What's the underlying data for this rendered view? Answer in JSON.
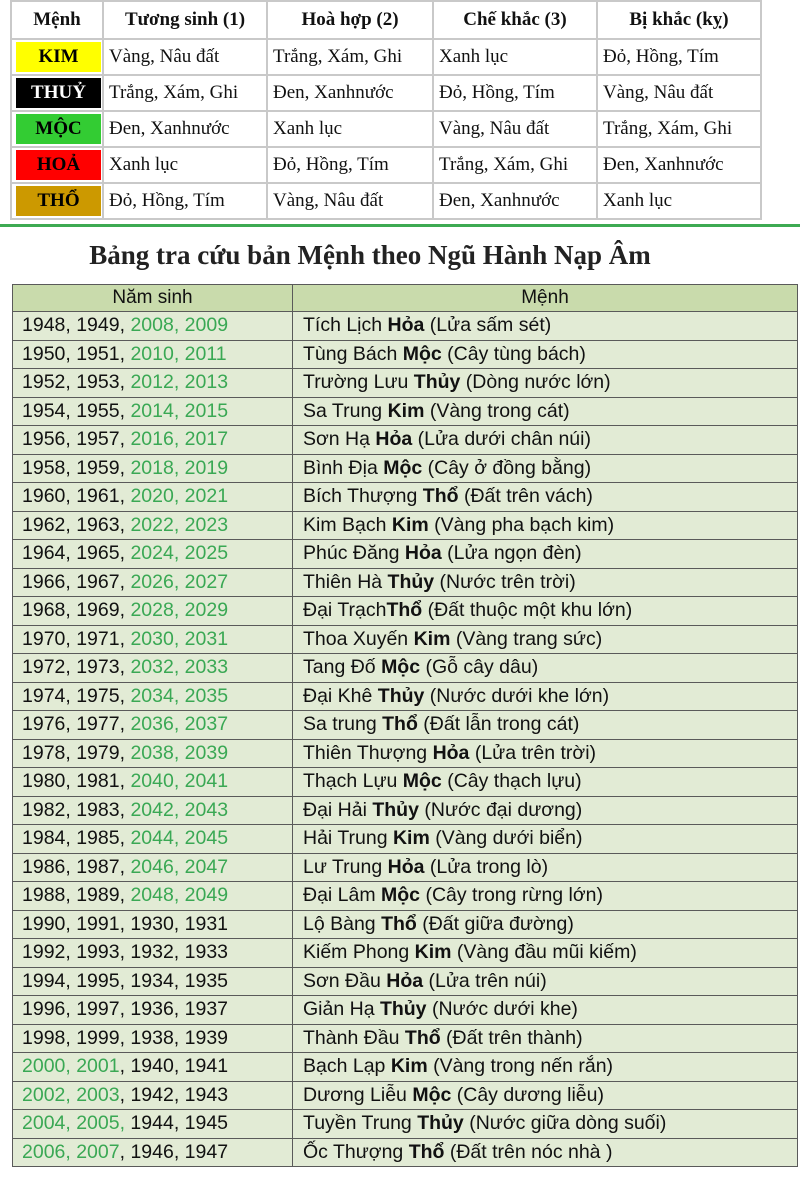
{
  "top_table": {
    "headers": [
      "Mệnh",
      "Tương sinh (1)",
      "Hoà hợp (2)",
      "Chế khắc (3)",
      "Bị khắc (kỵ)"
    ],
    "rows": [
      {
        "menh": "KIM",
        "bg": "#ffff00",
        "fg": "#000000",
        "cells": [
          "Vàng, Nâu đất",
          "Trắng, Xám, Ghi",
          "Xanh lục",
          "Đỏ, Hồng, Tím"
        ]
      },
      {
        "menh": "THUỶ",
        "bg": "#000000",
        "fg": "#ffffff",
        "cells": [
          "Trắng, Xám, Ghi",
          "Đen, Xanhnước",
          "Đỏ, Hồng, Tím",
          "Vàng, Nâu đất"
        ]
      },
      {
        "menh": "MỘC",
        "bg": "#33cc33",
        "fg": "#000000",
        "cells": [
          "Đen, Xanhnước",
          "Xanh lục",
          "Vàng, Nâu đất",
          "Trắng, Xám, Ghi"
        ]
      },
      {
        "menh": "HOẢ",
        "bg": "#ff0000",
        "fg": "#000000",
        "cells": [
          "Xanh lục",
          "Đỏ, Hồng, Tím",
          "Trắng, Xám, Ghi",
          "Đen, Xanhnước"
        ]
      },
      {
        "menh": "THỔ",
        "bg": "#cc9900",
        "fg": "#000000",
        "cells": [
          "Đỏ, Hồng, Tím",
          "Vàng, Nâu đất",
          "Đen, Xanhnước",
          "Xanh lục"
        ]
      }
    ]
  },
  "section_title": "Bảng tra cứu bản Mệnh theo Ngũ Hành Nạp Âm",
  "lookup_table": {
    "headers": [
      "Năm sinh",
      "Mệnh"
    ],
    "rows": [
      {
        "years": [
          [
            "1948, 1949, ",
            false
          ],
          [
            "2008, 2009",
            true
          ]
        ],
        "menh": [
          "Tích Lịch ",
          "Hỏa",
          " (Lửa sấm sét)"
        ]
      },
      {
        "years": [
          [
            "1950, 1951, ",
            false
          ],
          [
            "2010, 2011",
            true
          ]
        ],
        "menh": [
          "Tùng Bách ",
          "Mộc",
          " (Cây tùng bách)"
        ]
      },
      {
        "years": [
          [
            "1952, 1953, ",
            false
          ],
          [
            "2012, 2013",
            true
          ]
        ],
        "menh": [
          "Trường Lưu ",
          "Thủy",
          " (Dòng nước lớn)"
        ]
      },
      {
        "years": [
          [
            "1954, 1955, ",
            false
          ],
          [
            "2014, 2015",
            true
          ]
        ],
        "menh": [
          "Sa Trung ",
          "Kim",
          " (Vàng trong cát)"
        ]
      },
      {
        "years": [
          [
            "1956, 1957, ",
            false
          ],
          [
            "2016, 2017",
            true
          ]
        ],
        "menh": [
          " Sơn Hạ ",
          "Hỏa",
          " (Lửa dưới chân núi)"
        ]
      },
      {
        "years": [
          [
            "1958, 1959, ",
            false
          ],
          [
            "2018, 2019",
            true
          ]
        ],
        "menh": [
          "Bình Địa ",
          "Mộc",
          " (Cây ở đồng bằng)"
        ]
      },
      {
        "years": [
          [
            "1960, 1961, ",
            false
          ],
          [
            "2020, 2021",
            true
          ]
        ],
        "menh": [
          "Bích Thượng ",
          "Thổ",
          " (Đất trên vách)"
        ]
      },
      {
        "years": [
          [
            "1962, 1963, ",
            false
          ],
          [
            "2022, 2023",
            true
          ]
        ],
        "menh": [
          "Kim Bạch ",
          "Kim",
          " (Vàng pha bạch kim)"
        ]
      },
      {
        "years": [
          [
            "1964, 1965, ",
            false
          ],
          [
            "2024, 2025",
            true
          ]
        ],
        "menh": [
          "Phúc Đăng ",
          "Hỏa",
          " (Lửa ngọn đèn)"
        ]
      },
      {
        "years": [
          [
            "1966, 1967, ",
            false
          ],
          [
            "2026, 2027",
            true
          ]
        ],
        "menh": [
          "Thiên Hà ",
          "Thủy",
          " (Nước trên trời)"
        ]
      },
      {
        "years": [
          [
            "1968, 1969, ",
            false
          ],
          [
            "2028, 2029",
            true
          ]
        ],
        "menh": [
          "Đại Trạch",
          "Thổ",
          " (Đất thuộc một khu lớn)"
        ]
      },
      {
        "years": [
          [
            "1970, 1971, ",
            false
          ],
          [
            "2030, 2031",
            true
          ]
        ],
        "menh": [
          "Thoa Xuyến ",
          "Kim",
          " (Vàng trang sức)"
        ]
      },
      {
        "years": [
          [
            "1972, 1973, ",
            false
          ],
          [
            "2032, 2033",
            true
          ]
        ],
        "menh": [
          "Tang Đố ",
          "Mộc",
          " (Gỗ cây dâu)"
        ]
      },
      {
        "years": [
          [
            "1974, 1975, ",
            false
          ],
          [
            "2034, 2035",
            true
          ]
        ],
        "menh": [
          "Đại Khê ",
          "Thủy",
          " (Nước dưới khe lớn)"
        ]
      },
      {
        "years": [
          [
            "1976, 1977, ",
            false
          ],
          [
            "2036, 2037",
            true
          ]
        ],
        "menh": [
          "Sa trung ",
          "Thổ",
          " (Đất lẫn trong cát)"
        ]
      },
      {
        "years": [
          [
            "1978, 1979, ",
            false
          ],
          [
            "2038, 2039",
            true
          ]
        ],
        "menh": [
          "Thiên Thượng ",
          "Hỏa",
          " (Lửa trên trời)"
        ]
      },
      {
        "years": [
          [
            "1980, 1981, ",
            false
          ],
          [
            "2040, 2041",
            true
          ]
        ],
        "menh": [
          " Thạch Lựu ",
          "Mộc",
          " (Cây thạch lựu)"
        ]
      },
      {
        "years": [
          [
            "1982, 1983, ",
            false
          ],
          [
            "2042, 2043",
            true
          ]
        ],
        "menh": [
          "Đại Hải ",
          "Thủy",
          " (Nước đại dương)"
        ]
      },
      {
        "years": [
          [
            "1984, 1985, ",
            false
          ],
          [
            "2044, 2045",
            true
          ]
        ],
        "menh": [
          "Hải Trung ",
          "Kim",
          " (Vàng dưới biển)"
        ]
      },
      {
        "years": [
          [
            "1986, 1987, ",
            false
          ],
          [
            "2046, 2047",
            true
          ]
        ],
        "menh": [
          "Lư Trung ",
          "Hỏa",
          " (Lửa trong lò)"
        ]
      },
      {
        "years": [
          [
            "1988, 1989, ",
            false
          ],
          [
            "2048, 2049",
            true
          ]
        ],
        "menh": [
          "Đại Lâm ",
          "Mộc",
          " (Cây trong rừng lớn)"
        ]
      },
      {
        "years": [
          [
            "1990, 1991, 1930, 1931",
            false
          ]
        ],
        "menh": [
          "Lộ Bàng ",
          "Thổ",
          " (Đất giữa đường)"
        ]
      },
      {
        "years": [
          [
            "1992, 1993, 1932, 1933",
            false
          ]
        ],
        "menh": [
          "Kiếm Phong ",
          "Kim",
          " (Vàng đầu mũi kiếm)"
        ]
      },
      {
        "years": [
          [
            "1994, 1995, 1934, 1935",
            false
          ]
        ],
        "menh": [
          "Sơn Đầu ",
          "Hỏa",
          " (Lửa trên núi)"
        ]
      },
      {
        "years": [
          [
            "1996, 1997, 1936, 1937",
            false
          ]
        ],
        "menh": [
          "Giản Hạ ",
          "Thủy",
          " (Nước dưới khe)"
        ]
      },
      {
        "years": [
          [
            "1998, 1999, 1938, 1939",
            false
          ]
        ],
        "menh": [
          "Thành Đầu ",
          "Thổ",
          " (Đất trên thành)"
        ]
      },
      {
        "years": [
          [
            "2000, 2001",
            true
          ],
          [
            ", 1940, 1941",
            false
          ]
        ],
        "menh": [
          "Bạch Lạp ",
          "Kim",
          " (Vàng trong nến rắn)"
        ]
      },
      {
        "years": [
          [
            "2002, 2003",
            true
          ],
          [
            ", 1942, 1943",
            false
          ]
        ],
        "menh": [
          "Dương Liễu ",
          "Mộc",
          " (Cây dương liễu)"
        ]
      },
      {
        "years": [
          [
            "2004, 2005,",
            true
          ],
          [
            " 1944, 1945",
            false
          ]
        ],
        "menh": [
          "Tuyền Trung ",
          "Thủy",
          " (Nước giữa dòng suối)"
        ]
      },
      {
        "years": [
          [
            "2006, 2007",
            true
          ],
          [
            ", 1946, 1947",
            false
          ]
        ],
        "menh": [
          "Ốc Thượng ",
          "Thổ",
          " (Đất trên nóc nhà )"
        ]
      }
    ]
  },
  "colors": {
    "green_text": "#3aa854",
    "header_bg": "#c9dbac",
    "row_bg": "#e2ebd5",
    "divider": "#3daa52"
  }
}
